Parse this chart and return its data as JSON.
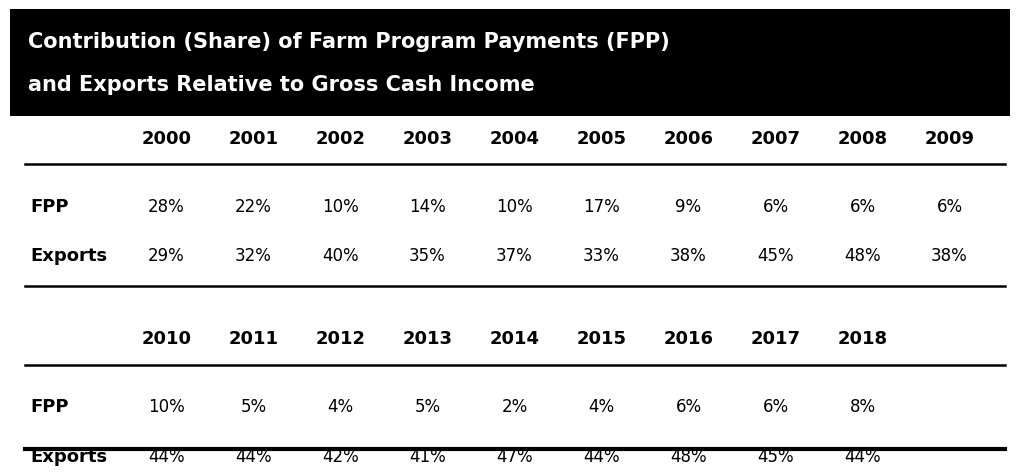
{
  "title_line1": "Contribution (Share) of Farm Program Payments (FPP)",
  "title_line2": "and Exports Relative to Gross Cash Income",
  "title_bg": "#000000",
  "title_fg": "#ffffff",
  "table_bg": "#ffffff",
  "table_fg": "#000000",
  "border_color": "#000000",
  "section1": {
    "years": [
      "",
      "2000",
      "2001",
      "2002",
      "2003",
      "2004",
      "2005",
      "2006",
      "2007",
      "2008",
      "2009"
    ],
    "fpp": [
      "FPP",
      "28%",
      "22%",
      "10%",
      "14%",
      "10%",
      "17%",
      "9%",
      "6%",
      "6%",
      "6%"
    ],
    "exports": [
      "Exports",
      "29%",
      "32%",
      "40%",
      "35%",
      "37%",
      "33%",
      "38%",
      "45%",
      "48%",
      "38%"
    ]
  },
  "section2": {
    "years": [
      "",
      "2010",
      "2011",
      "2012",
      "2013",
      "2014",
      "2015",
      "2016",
      "2017",
      "2018",
      ""
    ],
    "fpp": [
      "FPP",
      "10%",
      "5%",
      "4%",
      "5%",
      "2%",
      "4%",
      "6%",
      "6%",
      "8%",
      ""
    ],
    "exports": [
      "Exports",
      "44%",
      "44%",
      "42%",
      "41%",
      "47%",
      "44%",
      "48%",
      "45%",
      "44%",
      ""
    ]
  },
  "header_fontsize": 13,
  "data_fontsize": 12,
  "title_fontsize": 15
}
